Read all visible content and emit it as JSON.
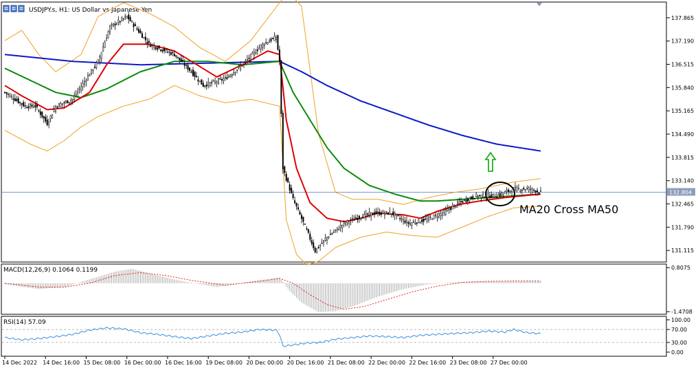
{
  "window": {
    "symbol_title": "USDJPY.s, H1:  US Dollar vs Japanese Yen",
    "toolbar_icons": [
      "chart-window-icon",
      "chart-window-icon",
      "chart-window-icon"
    ]
  },
  "colors": {
    "candle": "#000000",
    "ma20": "#e00000",
    "ma50": "#0a8a0a",
    "ma200": "#0b18c8",
    "bollinger": "#f0a020",
    "price_line": "#5070c0",
    "macd_hist": "#b0b0b0",
    "macd_signal": "#e02020",
    "rsi": "#3a8ee0",
    "arrow": "#20b020",
    "circle": "#000000",
    "current_price_bg": "#8c9cbc"
  },
  "annotations": {
    "cross_label": "MA20 Cross MA50"
  },
  "chart_data": [
    {
      "type": "candlestick",
      "title": "USDJPY.s, H1:  US Dollar vs Japanese Yen",
      "ylim": [
        130.8,
        138.3
      ],
      "ytick_labels": [
        "137.865",
        "137.190",
        "136.515",
        "135.840",
        "135.165",
        "134.490",
        "133.815",
        "133.140",
        "132.465",
        "131.790",
        "131.115"
      ],
      "ytick_values": [
        137.865,
        137.19,
        136.515,
        135.84,
        135.165,
        134.49,
        133.815,
        133.14,
        132.465,
        131.79,
        131.115
      ],
      "current_price": "132.804",
      "current_price_value": 132.804,
      "series": [
        {
          "name": "Price",
          "type": "candlestick",
          "close_anchors": [
            [
              0,
              135.7
            ],
            [
              12,
              135.3
            ],
            [
              18,
              135.3
            ],
            [
              25,
              134.8
            ],
            [
              30,
              135.3
            ],
            [
              40,
              135.5
            ],
            [
              48,
              136.1
            ],
            [
              55,
              136.6
            ],
            [
              62,
              137.6
            ],
            [
              72,
              137.9
            ],
            [
              85,
              137.1
            ],
            [
              100,
              136.8
            ],
            [
              110,
              136.3
            ],
            [
              117,
              135.9
            ],
            [
              130,
              136.1
            ],
            [
              140,
              136.5
            ],
            [
              152,
              137.1
            ],
            [
              160,
              137.3
            ],
            [
              162,
              136.6
            ],
            [
              164,
              133.5
            ],
            [
              170,
              132.6
            ],
            [
              178,
              131.7
            ],
            [
              183,
              131.1
            ],
            [
              190,
              131.5
            ],
            [
              200,
              131.9
            ],
            [
              210,
              132.1
            ],
            [
              218,
              132.2
            ],
            [
              228,
              132.2
            ],
            [
              238,
              131.9
            ],
            [
              248,
              132.0
            ],
            [
              258,
              132.2
            ],
            [
              268,
              132.5
            ],
            [
              278,
              132.7
            ],
            [
              290,
              132.7
            ],
            [
              300,
              132.9
            ],
            [
              310,
              132.9
            ],
            [
              316,
              132.8
            ]
          ]
        },
        {
          "name": "MA200",
          "type": "line",
          "anchors": [
            [
              0,
              136.8
            ],
            [
              40,
              136.6
            ],
            [
              80,
              136.5
            ],
            [
              120,
              136.55
            ],
            [
              162,
              136.6
            ],
            [
              175,
              136.3
            ],
            [
              190,
              135.9
            ],
            [
              210,
              135.45
            ],
            [
              230,
              135.1
            ],
            [
              250,
              134.75
            ],
            [
              270,
              134.45
            ],
            [
              290,
              134.2
            ],
            [
              316,
              134.0
            ]
          ]
        },
        {
          "name": "MA50",
          "type": "line",
          "anchors": [
            [
              0,
              136.4
            ],
            [
              15,
              136.05
            ],
            [
              30,
              135.7
            ],
            [
              45,
              135.55
            ],
            [
              60,
              135.8
            ],
            [
              80,
              136.3
            ],
            [
              100,
              136.6
            ],
            [
              120,
              136.6
            ],
            [
              140,
              136.5
            ],
            [
              162,
              136.6
            ],
            [
              170,
              135.7
            ],
            [
              180,
              134.9
            ],
            [
              190,
              134.1
            ],
            [
              200,
              133.5
            ],
            [
              215,
              133.0
            ],
            [
              230,
              132.75
            ],
            [
              245,
              132.55
            ],
            [
              255,
              132.55
            ],
            [
              270,
              132.6
            ],
            [
              285,
              132.65
            ],
            [
              300,
              132.7
            ],
            [
              316,
              132.75
            ]
          ]
        },
        {
          "name": "MA20",
          "type": "line",
          "anchors": [
            [
              0,
              135.9
            ],
            [
              10,
              135.6
            ],
            [
              25,
              135.2
            ],
            [
              35,
              135.25
            ],
            [
              50,
              135.7
            ],
            [
              60,
              136.5
            ],
            [
              70,
              137.1
            ],
            [
              85,
              137.1
            ],
            [
              100,
              136.9
            ],
            [
              110,
              136.6
            ],
            [
              125,
              136.15
            ],
            [
              140,
              136.5
            ],
            [
              155,
              136.9
            ],
            [
              162,
              136.8
            ],
            [
              166,
              134.9
            ],
            [
              172,
              133.5
            ],
            [
              180,
              132.5
            ],
            [
              190,
              132.05
            ],
            [
              200,
              131.95
            ],
            [
              210,
              132.05
            ],
            [
              220,
              132.2
            ],
            [
              235,
              132.15
            ],
            [
              245,
              132.05
            ],
            [
              255,
              132.25
            ],
            [
              268,
              132.45
            ],
            [
              280,
              132.55
            ],
            [
              295,
              132.65
            ],
            [
              316,
              132.75
            ]
          ]
        },
        {
          "name": "Bollinger Upper",
          "type": "line",
          "anchors": [
            [
              0,
              137.2
            ],
            [
              10,
              137.5
            ],
            [
              20,
              136.8
            ],
            [
              30,
              136.3
            ],
            [
              45,
              136.8
            ],
            [
              55,
              137.9
            ],
            [
              70,
              138.3
            ],
            [
              85,
              138.0
            ],
            [
              100,
              137.6
            ],
            [
              115,
              137.0
            ],
            [
              130,
              136.6
            ],
            [
              145,
              137.2
            ],
            [
              162,
              138.3
            ],
            [
              167,
              138.6
            ],
            [
              175,
              138.2
            ],
            [
              185,
              134.5
            ],
            [
              195,
              132.8
            ],
            [
              205,
              132.6
            ],
            [
              220,
              132.6
            ],
            [
              235,
              132.45
            ],
            [
              250,
              132.65
            ],
            [
              265,
              132.8
            ],
            [
              280,
              132.9
            ],
            [
              300,
              133.1
            ],
            [
              316,
              133.2
            ]
          ]
        },
        {
          "name": "Bollinger Lower",
          "type": "line",
          "anchors": [
            [
              0,
              134.6
            ],
            [
              15,
              134.2
            ],
            [
              25,
              134.0
            ],
            [
              35,
              134.3
            ],
            [
              45,
              134.7
            ],
            [
              55,
              135.0
            ],
            [
              70,
              135.3
            ],
            [
              85,
              135.5
            ],
            [
              100,
              135.9
            ],
            [
              115,
              135.6
            ],
            [
              130,
              135.4
            ],
            [
              145,
              135.5
            ],
            [
              162,
              135.3
            ],
            [
              166,
              132.0
            ],
            [
              172,
              131.0
            ],
            [
              178,
              130.7
            ],
            [
              185,
              130.8
            ],
            [
              195,
              131.2
            ],
            [
              210,
              131.5
            ],
            [
              225,
              131.65
            ],
            [
              240,
              131.55
            ],
            [
              255,
              131.5
            ],
            [
              270,
              131.8
            ],
            [
              285,
              132.1
            ],
            [
              300,
              132.35
            ],
            [
              316,
              132.4
            ]
          ]
        }
      ]
    },
    {
      "type": "bar",
      "title": "MACD(12,26,9) 0.1064 0.1199",
      "ylim": [
        -1.5,
        0.85
      ],
      "ytick_labels": [
        "0.8075",
        "-1.4708"
      ],
      "ytick_values": [
        0.8075,
        -1.4708
      ],
      "series": [
        {
          "name": "MACD",
          "type": "histogram",
          "anchors": [
            [
              0,
              -0.05
            ],
            [
              20,
              -0.3
            ],
            [
              35,
              -0.2
            ],
            [
              50,
              0.2
            ],
            [
              65,
              0.6
            ],
            [
              75,
              0.75
            ],
            [
              90,
              0.4
            ],
            [
              105,
              0.1
            ],
            [
              125,
              -0.2
            ],
            [
              145,
              0.1
            ],
            [
              162,
              0.3
            ],
            [
              168,
              -0.4
            ],
            [
              175,
              -1.0
            ],
            [
              185,
              -1.5
            ],
            [
              195,
              -1.45
            ],
            [
              205,
              -1.2
            ],
            [
              220,
              -0.7
            ],
            [
              235,
              -0.3
            ],
            [
              250,
              -0.05
            ],
            [
              265,
              0.05
            ],
            [
              280,
              0.1
            ],
            [
              300,
              0.1
            ],
            [
              316,
              0.1064
            ]
          ]
        },
        {
          "name": "Signal",
          "type": "line",
          "anchors": [
            [
              0,
              0.0
            ],
            [
              20,
              -0.2
            ],
            [
              35,
              -0.2
            ],
            [
              50,
              0.0
            ],
            [
              65,
              0.4
            ],
            [
              80,
              0.55
            ],
            [
              95,
              0.4
            ],
            [
              110,
              0.15
            ],
            [
              130,
              -0.1
            ],
            [
              150,
              0.1
            ],
            [
              162,
              0.25
            ],
            [
              170,
              0.0
            ],
            [
              180,
              -0.6
            ],
            [
              190,
              -1.1
            ],
            [
              200,
              -1.35
            ],
            [
              212,
              -1.2
            ],
            [
              225,
              -0.85
            ],
            [
              240,
              -0.45
            ],
            [
              255,
              -0.15
            ],
            [
              270,
              0.05
            ],
            [
              285,
              0.1
            ],
            [
              300,
              0.12
            ],
            [
              316,
              0.1199
            ]
          ]
        }
      ]
    },
    {
      "type": "line",
      "title": "RSI(14) 57.09",
      "ylim": [
        0,
        100
      ],
      "ytick_labels": [
        "100.00",
        "70.00",
        "30.00",
        "0.00"
      ],
      "ytick_values": [
        100,
        70,
        30,
        0
      ],
      "levels": [
        70,
        30
      ],
      "series": [
        {
          "name": "RSI",
          "anchors": [
            [
              0,
              45
            ],
            [
              10,
              38
            ],
            [
              20,
              42
            ],
            [
              30,
              48
            ],
            [
              40,
              55
            ],
            [
              50,
              68
            ],
            [
              60,
              75
            ],
            [
              70,
              72
            ],
            [
              80,
              60
            ],
            [
              90,
              55
            ],
            [
              100,
              48
            ],
            [
              110,
              42
            ],
            [
              120,
              50
            ],
            [
              130,
              58
            ],
            [
              140,
              62
            ],
            [
              150,
              70
            ],
            [
              160,
              68
            ],
            [
              162,
              55
            ],
            [
              164,
              18
            ],
            [
              170,
              22
            ],
            [
              178,
              28
            ],
            [
              186,
              30
            ],
            [
              195,
              40
            ],
            [
              205,
              45
            ],
            [
              215,
              50
            ],
            [
              225,
              48
            ],
            [
              235,
              45
            ],
            [
              245,
              52
            ],
            [
              255,
              55
            ],
            [
              265,
              58
            ],
            [
              275,
              60
            ],
            [
              285,
              65
            ],
            [
              295,
              62
            ],
            [
              300,
              70
            ],
            [
              308,
              60
            ],
            [
              316,
              57.09
            ]
          ]
        }
      ]
    }
  ],
  "x_axis": {
    "total_bars": 317,
    "labels": [
      "14 Dec 2022",
      "14 Dec 16:00",
      "15 Dec 08:00",
      "16 Dec 00:00",
      "16 Dec 16:00",
      "19 Dec 08:00",
      "20 Dec 00:00",
      "20 Dec 16:00",
      "21 Dec 08:00",
      "22 Dec 00:00",
      "22 Dec 16:00",
      "23 Dec 08:00",
      "27 Dec 00:00"
    ],
    "label_bars": [
      0,
      24,
      48,
      72,
      96,
      120,
      144,
      168,
      192,
      216,
      240,
      264,
      288
    ]
  }
}
